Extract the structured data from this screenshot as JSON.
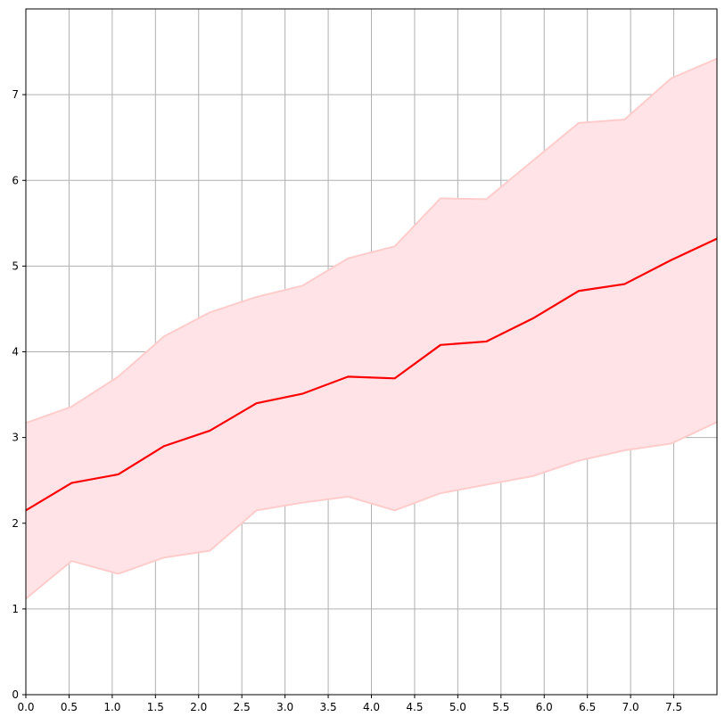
{
  "chart_data": {
    "type": "line",
    "title": "",
    "xlabel": "",
    "ylabel": "",
    "xlim": [
      0,
      8
    ],
    "ylim": [
      0,
      8
    ],
    "x_ticks": [
      "0.0",
      "0.5",
      "1.0",
      "1.5",
      "2.0",
      "2.5",
      "3.0",
      "3.5",
      "4.0",
      "4.5",
      "5.0",
      "5.5",
      "6.0",
      "6.5",
      "7.0",
      "7.5"
    ],
    "y_ticks": [
      "0",
      "1",
      "2",
      "3",
      "4",
      "5",
      "6",
      "7"
    ],
    "grid": true,
    "colors": {
      "line": "#ff0000",
      "band_fill": "#ffe3e6",
      "band_edge": "#ffcccc",
      "grid": "#b0b0b0"
    },
    "x": [
      0.0,
      0.53,
      1.07,
      1.6,
      2.13,
      2.67,
      3.2,
      3.73,
      4.27,
      4.8,
      5.33,
      5.87,
      6.4,
      6.93,
      7.47,
      8.0
    ],
    "series": [
      {
        "values": [
          2.15,
          2.47,
          2.57,
          2.9,
          3.08,
          3.4,
          3.51,
          3.71,
          3.69,
          4.08,
          4.12,
          4.39,
          4.71,
          4.79,
          5.07,
          5.32
        ],
        "lower": [
          1.12,
          1.56,
          1.41,
          1.6,
          1.68,
          2.15,
          2.24,
          2.31,
          2.15,
          2.35,
          2.45,
          2.55,
          2.73,
          2.85,
          2.93,
          3.18
        ],
        "upper": [
          3.17,
          3.36,
          3.71,
          4.18,
          4.46,
          4.64,
          4.77,
          5.09,
          5.23,
          5.79,
          5.78,
          6.23,
          6.67,
          6.71,
          7.19,
          7.42
        ]
      }
    ]
  }
}
